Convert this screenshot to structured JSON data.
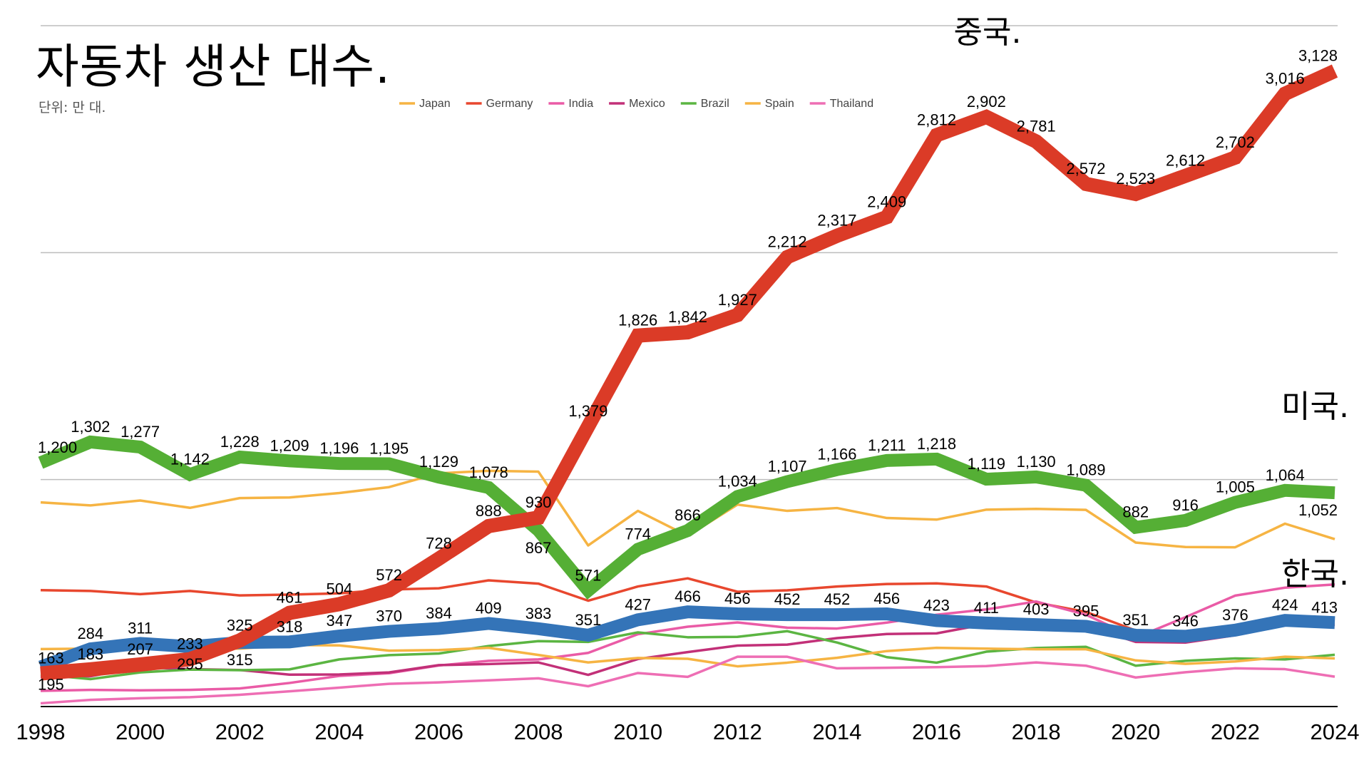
{
  "chart_data": {
    "type": "line",
    "title": "자동차 생산 대수.",
    "subtitle": "단위: 만 대.",
    "xlabel": "",
    "ylabel": "",
    "ylim": [
      0,
      3351
    ],
    "grid": true,
    "x": [
      1998,
      1999,
      2000,
      2001,
      2002,
      2003,
      2004,
      2005,
      2006,
      2007,
      2008,
      2009,
      2010,
      2011,
      2012,
      2013,
      2014,
      2015,
      2016,
      2017,
      2018,
      2019,
      2020,
      2021,
      2022,
      2023,
      2024
    ],
    "x_tick_labels": [
      "1998",
      "2000",
      "2002",
      "2004",
      "2006",
      "2008",
      "2010",
      "2012",
      "2014",
      "2016",
      "2018",
      "2020",
      "2022",
      "2024"
    ],
    "series": [
      {
        "name": "Japan",
        "labeled": false,
        "color": "#f6b443",
        "values": [
          1005,
          990,
          1014,
          978,
          1026,
          1029,
          1051,
          1080,
          1148,
          1160,
          1156,
          793,
          963,
          840,
          994,
          963,
          977,
          928,
          920,
          969,
          973,
          968,
          807,
          785,
          784,
          900,
          824
        ]
      },
      {
        "name": "Germany",
        "labeled": false,
        "color": "#e8472e",
        "values": [
          573,
          569,
          553,
          569,
          547,
          551,
          557,
          576,
          582,
          621,
          605,
          521,
          591,
          631,
          565,
          572,
          591,
          603,
          606,
          591,
          512,
          466,
          374,
          346,
          368,
          418,
          414
        ]
      },
      {
        "name": "India",
        "labeled": false,
        "color": "#ea5ba6",
        "values": [
          77,
          82,
          80,
          82,
          89,
          116,
          151,
          164,
          202,
          225,
          232,
          264,
          356,
          393,
          414,
          388,
          384,
          413,
          452,
          478,
          517,
          452,
          339,
          440,
          546,
          585,
          601
        ]
      },
      {
        "name": "Mexico",
        "labeled": false,
        "color": "#c23078",
        "values": [
          146,
          149,
          194,
          184,
          180,
          157,
          158,
          168,
          204,
          209,
          217,
          156,
          234,
          268,
          300,
          305,
          337,
          357,
          360,
          406,
          410,
          398,
          318,
          315,
          351,
          400,
          402
        ]
      },
      {
        "name": "Brazil",
        "labeled": false,
        "color": "#5bb542",
        "values": [
          158,
          135,
          168,
          182,
          179,
          183,
          232,
          253,
          261,
          298,
          322,
          318,
          365,
          341,
          343,
          371,
          315,
          243,
          216,
          270,
          288,
          294,
          201,
          225,
          237,
          232,
          255
        ]
      },
      {
        "name": "Spain",
        "labeled": false,
        "color": "#f6b443",
        "values": [
          283,
          285,
          304,
          285,
          285,
          303,
          301,
          275,
          278,
          289,
          254,
          217,
          239,
          235,
          198,
          216,
          240,
          273,
          289,
          285,
          282,
          282,
          227,
          210,
          222,
          245,
          237
        ]
      },
      {
        "name": "Thailand",
        "labeled": false,
        "color": "#ee6eb4",
        "values": [
          16,
          33,
          41,
          46,
          58,
          75,
          93,
          112,
          119,
          129,
          139,
          100,
          165,
          146,
          245,
          245,
          188,
          191,
          194,
          199,
          217,
          201,
          143,
          169,
          188,
          184,
          147
        ]
      },
      {
        "name": "한국.",
        "labeled": true,
        "color": "#3474b8",
        "values": [
          195,
          284,
          311,
          295,
          315,
          318,
          347,
          370,
          384,
          409,
          383,
          351,
          427,
          466,
          456,
          452,
          452,
          456,
          423,
          411,
          403,
          395,
          351,
          346,
          376,
          424,
          413
        ],
        "data_labels": [
          "195",
          "284",
          "311",
          "295",
          "315",
          "318",
          "347",
          "370",
          "384",
          "409",
          "383",
          "351",
          "427",
          "466",
          "456",
          "452",
          "452",
          "456",
          "423",
          "411",
          "403",
          "395",
          "351",
          "346",
          "376",
          "424",
          "413"
        ]
      },
      {
        "name": "미국.",
        "labeled": true,
        "color": "#55af35",
        "values": [
          1200,
          1302,
          1277,
          1142,
          1228,
          1209,
          1196,
          1195,
          1129,
          1078,
          867,
          571,
          774,
          866,
          1034,
          1107,
          1166,
          1211,
          1218,
          1119,
          1130,
          1089,
          882,
          916,
          1005,
          1064,
          1052
        ],
        "data_labels": [
          "1,200",
          "1,302",
          "1,277",
          "1,142",
          "1,228",
          "1,209",
          "1,196",
          "1,195",
          "1,129",
          "1,078",
          "867",
          "571",
          "774",
          "866",
          "1,034",
          "1,107",
          "1,166",
          "1,211",
          "1,218",
          "1,119",
          "1,130",
          "1,089",
          "882",
          "916",
          "1,005",
          "1,064",
          "1,052"
        ]
      },
      {
        "name": "중국.",
        "labeled": true,
        "color": "#db3b27",
        "values": [
          163,
          183,
          207,
          233,
          325,
          461,
          504,
          572,
          728,
          888,
          930,
          1379,
          1826,
          1842,
          1927,
          2212,
          2317,
          2409,
          2812,
          2902,
          2781,
          2572,
          2523,
          2612,
          2702,
          3016,
          3128
        ],
        "data_labels": [
          "163",
          "183",
          "207",
          "233",
          "325",
          "461",
          "504",
          "572",
          "728",
          "888",
          "930",
          "1,379",
          "1,826",
          "1,842",
          "1,927",
          "2,212",
          "2,317",
          "2,409",
          "2,812",
          "2,902",
          "2,781",
          "2,572",
          "2,523",
          "2,612",
          "2,702",
          "3,016",
          "3,128"
        ]
      }
    ]
  }
}
